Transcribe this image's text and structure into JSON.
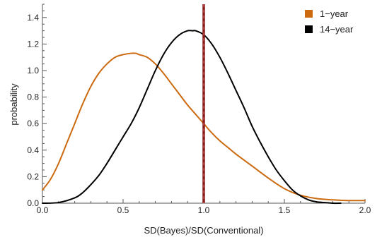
{
  "chart_data": {
    "type": "line",
    "title": "",
    "xlabel": "SD(Bayes)/SD(Conventional)",
    "ylabel": "probability",
    "xlim": [
      0.0,
      2.0
    ],
    "ylim": [
      0.0,
      1.5
    ],
    "x_ticks": [
      {
        "value": 0.0,
        "label": "0.0"
      },
      {
        "value": 0.5,
        "label": "0.5"
      },
      {
        "value": 1.0,
        "label": "1.0"
      },
      {
        "value": 1.5,
        "label": "1.5"
      },
      {
        "value": 2.0,
        "label": "2.0"
      }
    ],
    "y_ticks": [
      {
        "value": 0.0,
        "label": "0.0"
      },
      {
        "value": 0.2,
        "label": "0.2"
      },
      {
        "value": 0.4,
        "label": "0.4"
      },
      {
        "value": 0.6,
        "label": "0.6"
      },
      {
        "value": 0.8,
        "label": "0.8"
      },
      {
        "value": 1.0,
        "label": "1.0"
      },
      {
        "value": 1.2,
        "label": "1.2"
      },
      {
        "value": 1.4,
        "label": "1.4"
      }
    ],
    "grid": false,
    "legend_position": "top-right",
    "reference_line": {
      "x": 1.0,
      "color": "#8B1A1A",
      "style": "dashed"
    },
    "series": [
      {
        "name": "1−year",
        "color": "#CC6A10",
        "x": [
          0.0,
          0.05,
          0.1,
          0.15,
          0.2,
          0.25,
          0.3,
          0.35,
          0.4,
          0.45,
          0.5,
          0.55,
          0.58,
          0.6,
          0.65,
          0.7,
          0.75,
          0.8,
          0.85,
          0.9,
          0.95,
          1.0,
          1.05,
          1.1,
          1.15,
          1.2,
          1.3,
          1.4,
          1.5,
          1.6,
          1.7,
          1.8,
          1.9,
          2.0
        ],
        "y": [
          0.1,
          0.18,
          0.3,
          0.45,
          0.6,
          0.75,
          0.88,
          0.98,
          1.05,
          1.1,
          1.12,
          1.13,
          1.13,
          1.12,
          1.1,
          1.05,
          0.98,
          0.9,
          0.82,
          0.74,
          0.67,
          0.6,
          0.53,
          0.47,
          0.42,
          0.37,
          0.28,
          0.19,
          0.11,
          0.06,
          0.035,
          0.025,
          0.02,
          0.02
        ]
      },
      {
        "name": "14−year",
        "color": "#000000",
        "x": [
          0.0,
          0.1,
          0.2,
          0.25,
          0.3,
          0.35,
          0.4,
          0.45,
          0.5,
          0.55,
          0.6,
          0.65,
          0.7,
          0.75,
          0.8,
          0.85,
          0.9,
          0.93,
          0.95,
          1.0,
          1.05,
          1.1,
          1.15,
          1.2,
          1.25,
          1.3,
          1.35,
          1.4,
          1.45,
          1.5,
          1.55,
          1.6,
          1.65,
          1.7,
          1.75,
          1.8,
          1.85
        ],
        "y": [
          0.0,
          0.005,
          0.04,
          0.08,
          0.14,
          0.21,
          0.3,
          0.4,
          0.5,
          0.6,
          0.72,
          0.86,
          1.0,
          1.12,
          1.21,
          1.27,
          1.3,
          1.3,
          1.3,
          1.27,
          1.2,
          1.1,
          0.98,
          0.85,
          0.72,
          0.58,
          0.46,
          0.35,
          0.25,
          0.17,
          0.1,
          0.055,
          0.025,
          0.01,
          0.005,
          0.0,
          0.0
        ]
      }
    ]
  }
}
